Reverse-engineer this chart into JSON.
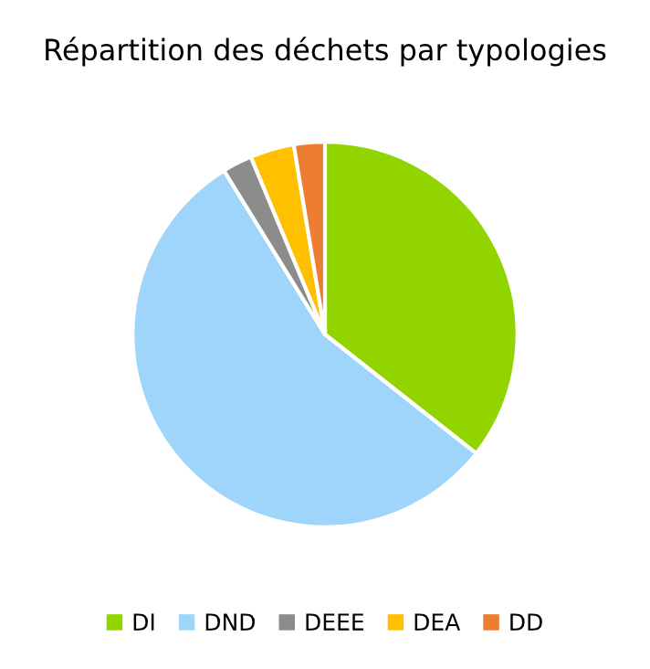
{
  "chart_data": {
    "type": "pie",
    "title": "Répartition des déchets par typologies",
    "categories": [
      "DI",
      "DND",
      "DEEE",
      "DEA",
      "DD"
    ],
    "values": [
      35.6,
      55.6,
      2.5,
      3.7,
      2.6
    ],
    "colors": [
      "#92d400",
      "#9fd4fb",
      "#8c8c8c",
      "#ffc000",
      "#ed7d31"
    ],
    "legend": "bottom"
  }
}
